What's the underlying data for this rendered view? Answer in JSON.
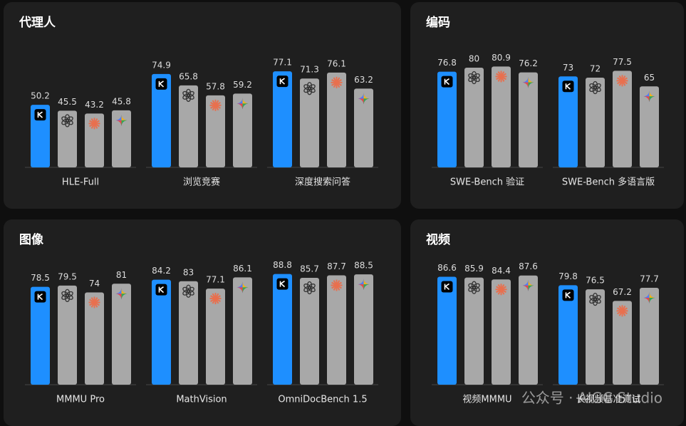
{
  "chart_data": [
    {
      "type": "bar",
      "title": "代理人",
      "categories": [
        "HLE-Full",
        "浏览竞赛",
        "深度搜索问答"
      ],
      "series": [
        {
          "color": "#1e8fff",
          "values": [
            50.2,
            74.9,
            77.1
          ]
        },
        {
          "color": "#a8a8a8",
          "values": [
            45.5,
            65.8,
            71.3
          ]
        },
        {
          "color": "#a8a8a8",
          "values": [
            43.2,
            57.8,
            76.1
          ]
        },
        {
          "color": "#a8a8a8",
          "values": [
            45.8,
            59.2,
            63.2
          ]
        }
      ]
    },
    {
      "type": "bar",
      "title": "编码",
      "categories": [
        "SWE-Bench 验证",
        "SWE-Bench 多语言版"
      ],
      "series": [
        {
          "color": "#1e8fff",
          "values": [
            76.8,
            73.0
          ]
        },
        {
          "color": "#a8a8a8",
          "values": [
            80.0,
            72.0
          ]
        },
        {
          "color": "#a8a8a8",
          "values": [
            80.9,
            77.5
          ]
        },
        {
          "color": "#a8a8a8",
          "values": [
            76.2,
            65.0
          ]
        }
      ]
    },
    {
      "type": "bar",
      "title": "图像",
      "categories": [
        "MMMU Pro",
        "MathVision",
        "OmniDocBench 1.5"
      ],
      "series": [
        {
          "color": "#1e8fff",
          "values": [
            78.5,
            84.2,
            88.8
          ]
        },
        {
          "color": "#a8a8a8",
          "values": [
            79.5,
            83.0,
            85.7
          ]
        },
        {
          "color": "#a8a8a8",
          "values": [
            74.0,
            77.1,
            87.7
          ]
        },
        {
          "color": "#a8a8a8",
          "values": [
            81.0,
            86.1,
            88.5
          ]
        }
      ]
    },
    {
      "type": "bar",
      "title": "视频",
      "categories": [
        "视频MMMU",
        "长视频基准测试"
      ],
      "series": [
        {
          "color": "#1e8fff",
          "values": [
            86.6,
            79.8
          ]
        },
        {
          "color": "#a8a8a8",
          "values": [
            85.9,
            76.5
          ]
        },
        {
          "color": "#a8a8a8",
          "values": [
            84.4,
            67.2
          ]
        },
        {
          "color": "#a8a8a8",
          "values": [
            87.6,
            77.7
          ]
        }
      ]
    }
  ],
  "watermark": "公众号 · AIGC Studio"
}
